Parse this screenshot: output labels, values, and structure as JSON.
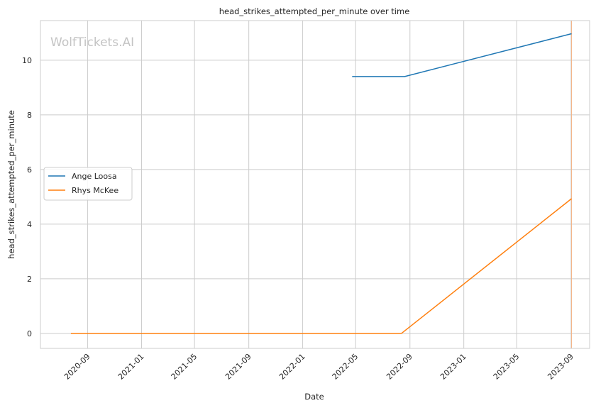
{
  "chart_data": {
    "type": "line",
    "title": "head_strikes_attempted_per_minute over time",
    "xlabel": "Date",
    "ylabel": "head_strikes_attempted_per_minute",
    "watermark": "WolfTickets.AI",
    "xlim": [
      "2020-05-17",
      "2023-10-13"
    ],
    "ylim": [
      -0.55,
      11.45
    ],
    "x_ticks": [
      "2020-09",
      "2021-01",
      "2021-05",
      "2021-09",
      "2022-01",
      "2022-05",
      "2022-09",
      "2023-01",
      "2023-05",
      "2023-09"
    ],
    "y_ticks": [
      0,
      2,
      4,
      6,
      8,
      10
    ],
    "grid": true,
    "legend_position": "center-left",
    "series": [
      {
        "name": "Ange Loosa",
        "color": "#1f77b4",
        "points": [
          {
            "x": "2022-04-23",
            "y": 9.4
          },
          {
            "x": "2022-08-20",
            "y": 9.4
          },
          {
            "x": "2023-09-02",
            "y": 10.97
          }
        ]
      },
      {
        "name": "Rhys McKee",
        "color": "#ff7f0e",
        "points": [
          {
            "x": "2020-07-25",
            "y": 0.0
          },
          {
            "x": "2022-08-13",
            "y": 0.0
          },
          {
            "x": "2023-09-02",
            "y": 4.93
          }
        ]
      }
    ],
    "annotations": [
      {
        "type": "vertical-line",
        "x": "2023-09-02",
        "color": "#f3b68a"
      }
    ]
  }
}
